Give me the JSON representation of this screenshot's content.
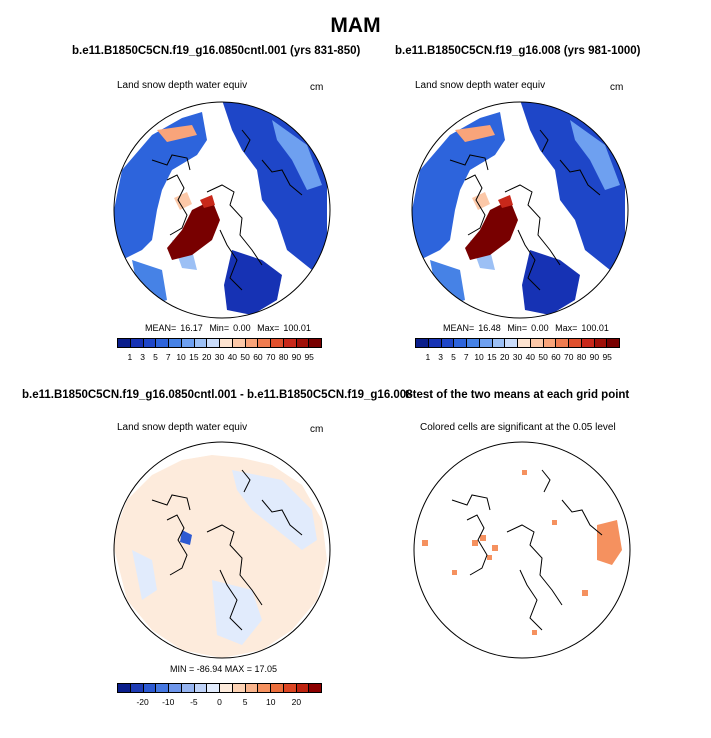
{
  "figure": {
    "title": "MAM"
  },
  "panels": {
    "p1": {
      "title": "b.e11.B1850C5CN.f19_g16.0850cntl.001 (yrs 831-850)",
      "subtitle": "Land snow depth water equiv",
      "unit": "cm",
      "stats": {
        "mean_label": "MEAN=",
        "mean": "16.17",
        "min_label": "Min=",
        "min": "0.00",
        "max_label": "Max=",
        "max": "100.01"
      }
    },
    "p2": {
      "title": "b.e11.B1850C5CN.f19_g16.008 (yrs 981-1000)",
      "subtitle": "Land snow depth water equiv",
      "unit": "cm",
      "stats": {
        "mean_label": "MEAN=",
        "mean": "16.48",
        "min_label": "Min=",
        "min": "0.00",
        "max_label": "Max=",
        "max": "100.01"
      }
    },
    "p3": {
      "title": "b.e11.B1850C5CN.f19_g16.0850cntl.001 - b.e11.B1850C5CN.f19_g16.008",
      "subtitle": "Land snow depth water equiv",
      "unit": "cm",
      "stats_text": "MIN = -86.94 MAX = 17.05"
    },
    "p4": {
      "title": "t-test of the two means at each grid point",
      "subtitle": "Colored cells are significant at the 0.05 level"
    }
  },
  "colorbars": {
    "abs": {
      "colors": [
        "#0a1e8c",
        "#1632b4",
        "#1e46c8",
        "#2d64dc",
        "#4682e6",
        "#6ea0f0",
        "#9cc0f5",
        "#cadcfa",
        "#fde3d0",
        "#fcc8a8",
        "#f9a47a",
        "#f07c50",
        "#e0502d",
        "#c8281a",
        "#a01008",
        "#780000"
      ],
      "labels": [
        "1",
        "3",
        "5",
        "7",
        "10",
        "15",
        "20",
        "30",
        "40",
        "50",
        "60",
        "70",
        "80",
        "90",
        "95"
      ]
    },
    "diff": {
      "colors": [
        "#0a1e8c",
        "#1e3cb4",
        "#2d5ad2",
        "#4678e1",
        "#6e96eb",
        "#96b4f0",
        "#bed2f8",
        "#e1ebfc",
        "#fdebdc",
        "#fcd2b4",
        "#f9b48c",
        "#f5915f",
        "#eb6e3c",
        "#dc4623",
        "#be230f",
        "#8c0000"
      ],
      "labels": [
        "-20",
        "-10",
        "-5",
        "0",
        "5",
        "10",
        "20"
      ]
    }
  }
}
